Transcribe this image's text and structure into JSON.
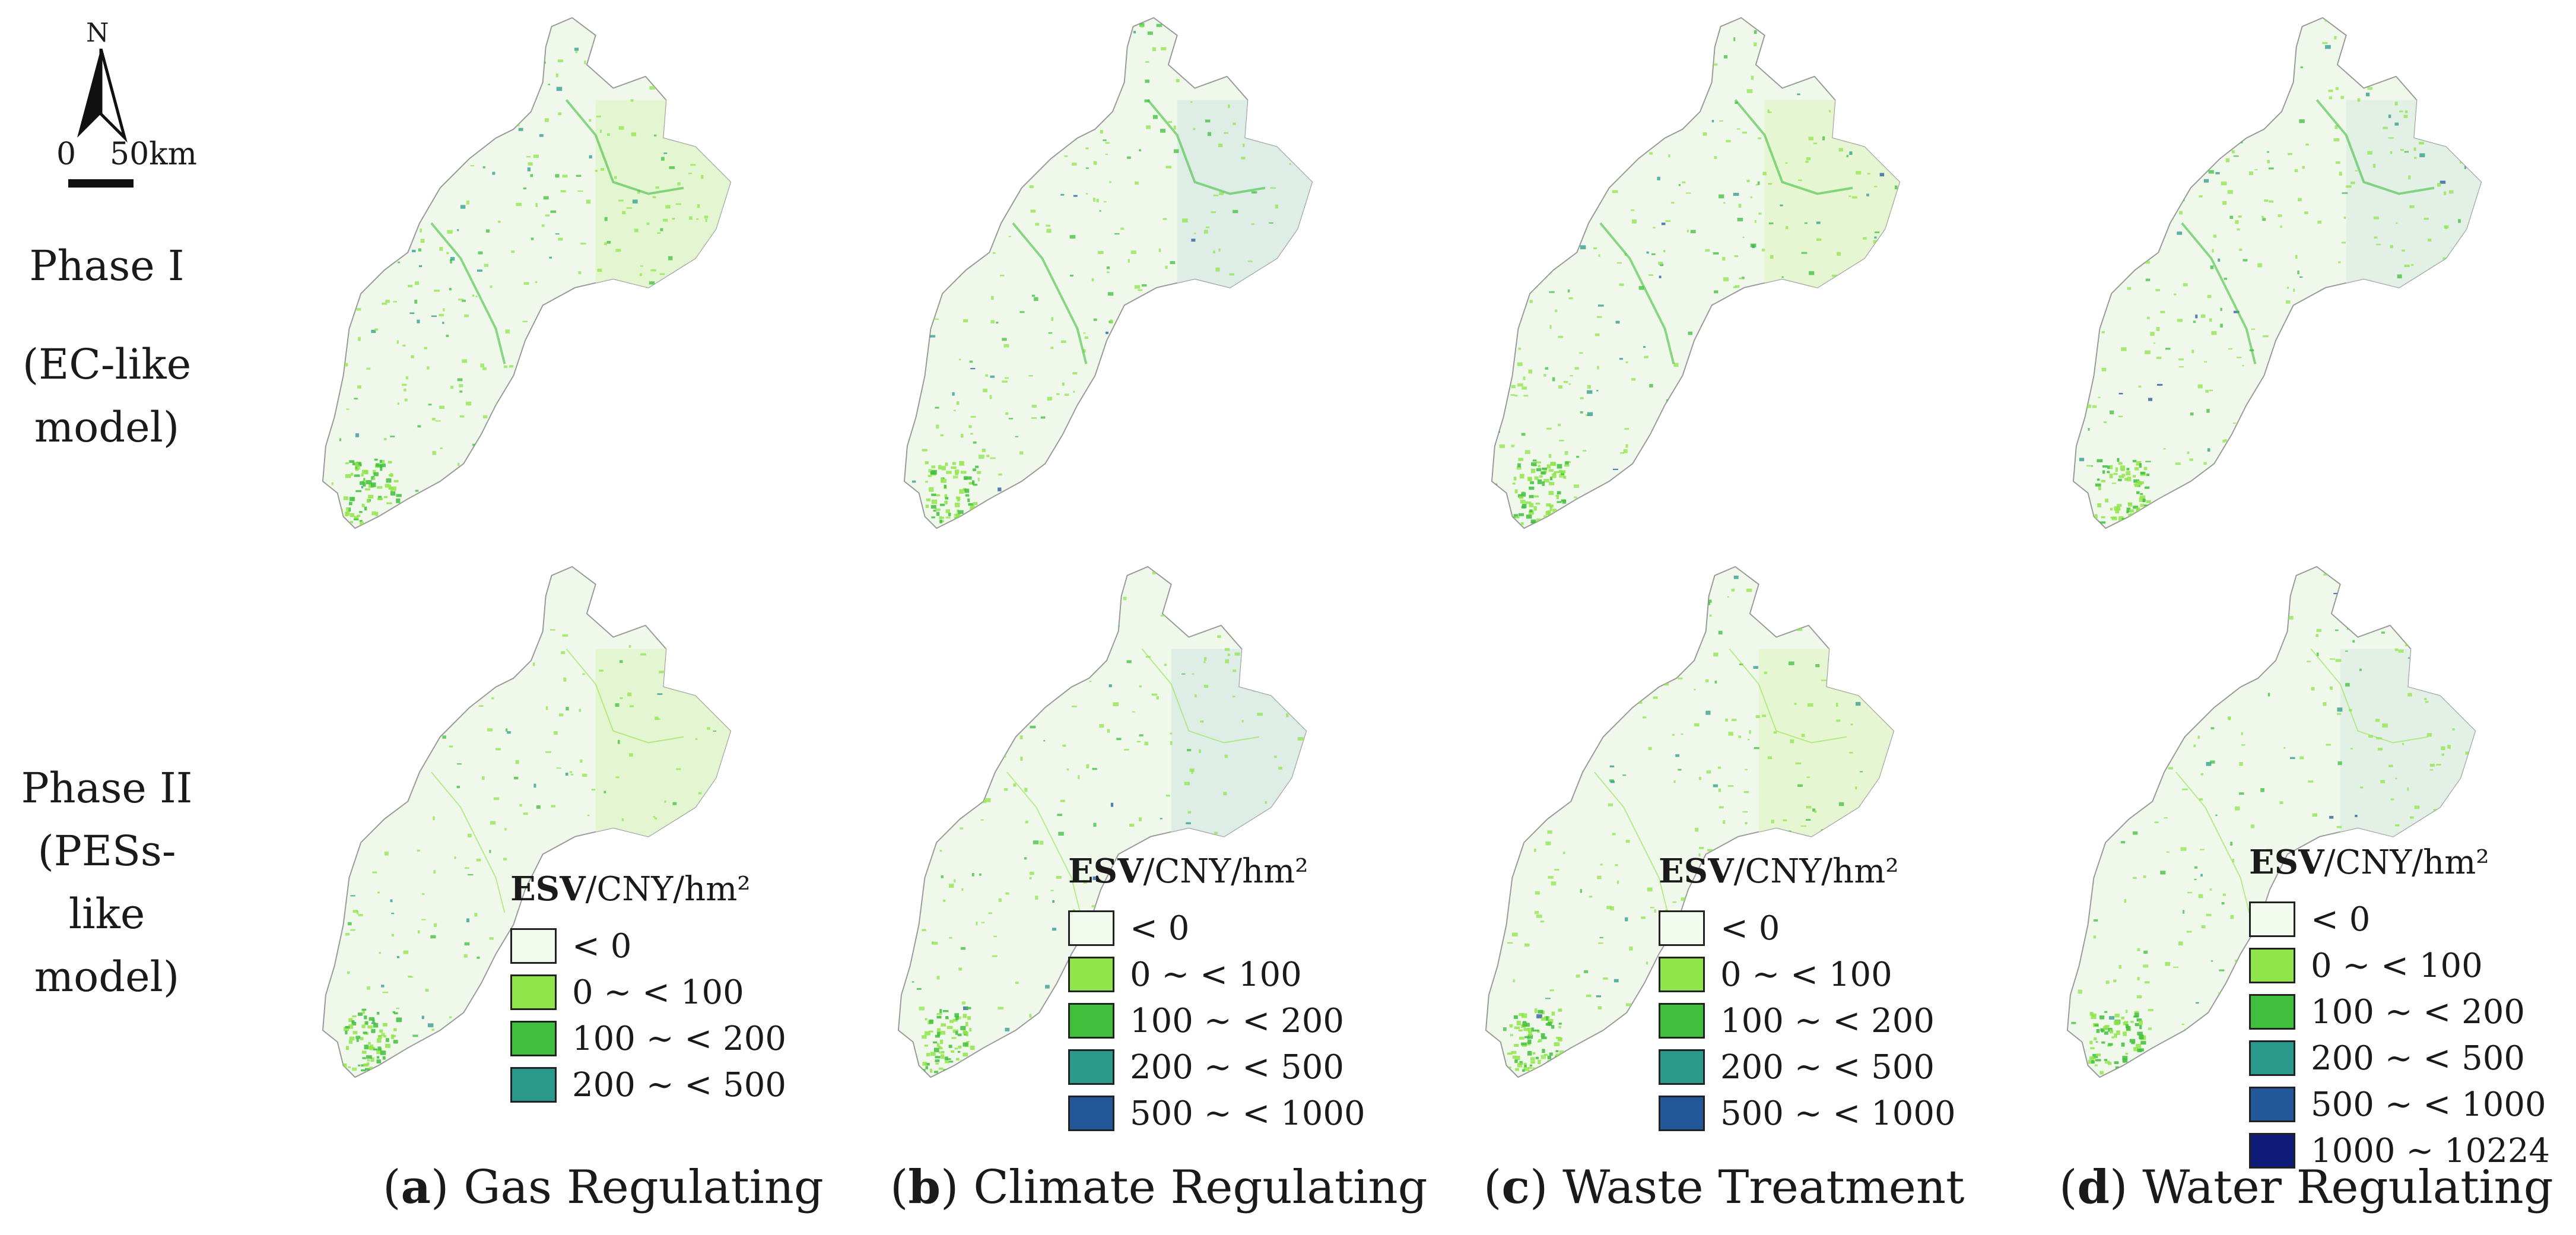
{
  "compass": {
    "north": "N",
    "scale_zero": "0",
    "scale_distance": "50km"
  },
  "rows": [
    {
      "label_line1": "Phase I",
      "label_line2": "(EC-like",
      "label_line3": "model)"
    },
    {
      "label_line1": "Phase II",
      "label_line2": "(PESs-like",
      "label_line3": "model)"
    }
  ],
  "legend_title": {
    "bold": "ESV",
    "rest": "/CNY/hm²"
  },
  "classes": [
    {
      "label": "< 0",
      "color": "#f2fbee"
    },
    {
      "label": "0 ~  < 100",
      "color": "#8fe54a"
    },
    {
      "label": "100 ~  < 200",
      "color": "#3fbf3c"
    },
    {
      "label": "200 ~  < 500",
      "color": "#2a9a8c"
    },
    {
      "label": "500 ~  < 1000",
      "color": "#22589a"
    },
    {
      "label": "1000 ~ 10224",
      "color": "#0e1a78"
    }
  ],
  "panels": [
    {
      "letter": "a",
      "title": "Gas Regulating",
      "legend_classes": 4
    },
    {
      "letter": "b",
      "title": "Climate Regulating",
      "legend_classes": 5
    },
    {
      "letter": "c",
      "title": "Waste Treatment",
      "legend_classes": 5
    },
    {
      "letter": "d",
      "title": "Water Regulating",
      "legend_classes": 6
    }
  ],
  "colors": {
    "region_fill": "#f0f8ec",
    "region_outline": "#9a9a9a",
    "panel_tints": [
      "#e2f4cf",
      "#dcece6",
      "#e4f4cf",
      "#e0eee6"
    ]
  }
}
